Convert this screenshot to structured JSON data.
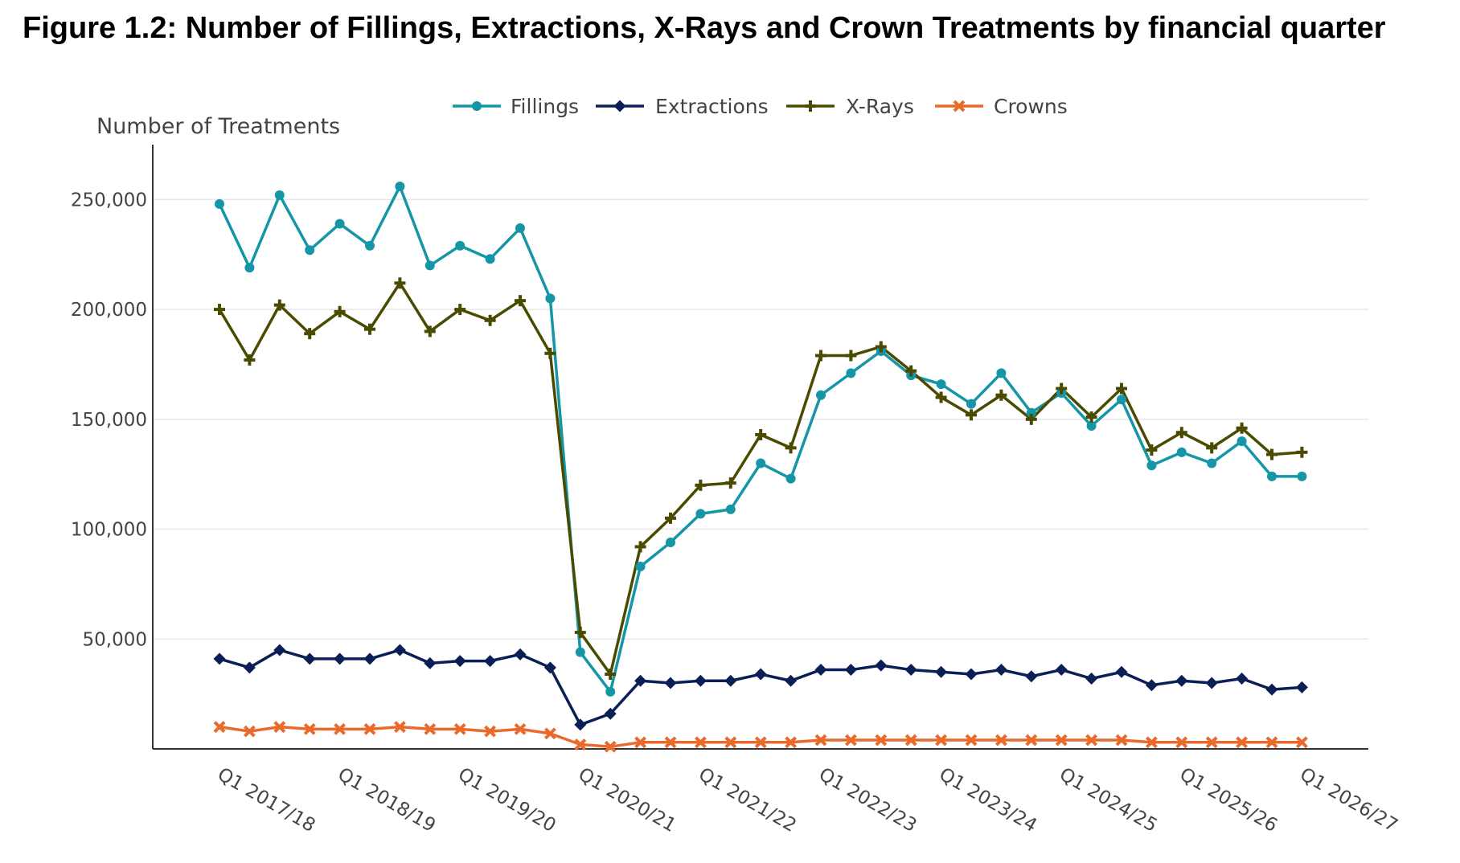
{
  "figure_title": "Figure 1.2: Number of Fillings, Extractions, X-Rays and Crown Treatments by financial quarter",
  "chart_data": {
    "type": "line",
    "title": "Figure 1.2: Number of Fillings, Extractions, X-Rays and Crown Treatments by financial quarter",
    "ylabel": "Number of Treatments",
    "xlabel": "",
    "ylim": [
      0,
      275000
    ],
    "yticks": [
      50000,
      100000,
      150000,
      200000,
      250000
    ],
    "ytick_labels": [
      "50,000",
      "100,000",
      "150,000",
      "200,000",
      "250,000"
    ],
    "grid": "horizontal",
    "legend_position": "top",
    "x": [
      "Q1 2017/18",
      "Q2 2017/18",
      "Q3 2017/18",
      "Q4 2017/18",
      "Q1 2018/19",
      "Q2 2018/19",
      "Q3 2018/19",
      "Q4 2018/19",
      "Q1 2019/20",
      "Q2 2019/20",
      "Q3 2019/20",
      "Q4 2019/20",
      "Q1 2020/21",
      "Q2 2020/21",
      "Q3 2020/21",
      "Q4 2020/21",
      "Q1 2021/22",
      "Q2 2021/22",
      "Q3 2021/22",
      "Q4 2021/22",
      "Q1 2022/23",
      "Q2 2022/23",
      "Q3 2022/23",
      "Q4 2022/23",
      "Q1 2023/24",
      "Q2 2023/24",
      "Q3 2023/24",
      "Q4 2023/24",
      "Q1 2024/25",
      "Q2 2024/25",
      "Q3 2024/25",
      "Q4 2024/25",
      "Q1 2025/26",
      "Q2 2025/26",
      "Q3 2025/26",
      "Q4 2025/26",
      "Q1 2026/27"
    ],
    "x_tick_labels": [
      "Q1 2017/18",
      "Q1 2018/19",
      "Q1 2019/20",
      "Q1 2020/21",
      "Q1 2021/22",
      "Q1 2022/23",
      "Q1 2023/24",
      "Q1 2024/25",
      "Q1 2025/26",
      "Q1 2026/27"
    ],
    "series": [
      {
        "name": "Fillings",
        "color": "#1596A6",
        "marker": "circle",
        "values": [
          248000,
          219000,
          252000,
          227000,
          239000,
          229000,
          256000,
          220000,
          229000,
          223000,
          237000,
          205000,
          44000,
          26000,
          83000,
          94000,
          107000,
          109000,
          130000,
          123000,
          161000,
          171000,
          181000,
          170000,
          166000,
          157000,
          171000,
          153000,
          162000,
          147000,
          159000,
          129000,
          135000,
          130000,
          140000,
          124000,
          124000
        ]
      },
      {
        "name": "Extractions",
        "color": "#0A1F55",
        "marker": "diamond",
        "values": [
          41000,
          37000,
          45000,
          41000,
          41000,
          41000,
          45000,
          39000,
          40000,
          40000,
          43000,
          37000,
          11000,
          16000,
          31000,
          30000,
          31000,
          31000,
          34000,
          31000,
          36000,
          36000,
          38000,
          36000,
          35000,
          34000,
          36000,
          33000,
          36000,
          32000,
          35000,
          29000,
          31000,
          30000,
          32000,
          27000,
          28000
        ]
      },
      {
        "name": "X-Rays",
        "color": "#4A4A00",
        "marker": "cross",
        "values": [
          200000,
          177000,
          202000,
          189000,
          199000,
          191000,
          212000,
          190000,
          200000,
          195000,
          204000,
          180000,
          53000,
          34000,
          92000,
          105000,
          120000,
          121000,
          143000,
          137000,
          179000,
          179000,
          183000,
          172000,
          160000,
          152000,
          161000,
          150000,
          164000,
          151000,
          164000,
          136000,
          144000,
          137000,
          146000,
          134000,
          135000
        ]
      },
      {
        "name": "Crowns",
        "color": "#E96A2B",
        "marker": "x",
        "values": [
          10000,
          8000,
          10000,
          9000,
          9000,
          9000,
          10000,
          9000,
          9000,
          8000,
          9000,
          7000,
          2000,
          1000,
          3000,
          3000,
          3000,
          3000,
          3000,
          3000,
          4000,
          4000,
          4000,
          4000,
          4000,
          4000,
          4000,
          4000,
          4000,
          4000,
          4000,
          3000,
          3000,
          3000,
          3000,
          3000,
          3000
        ]
      }
    ]
  }
}
